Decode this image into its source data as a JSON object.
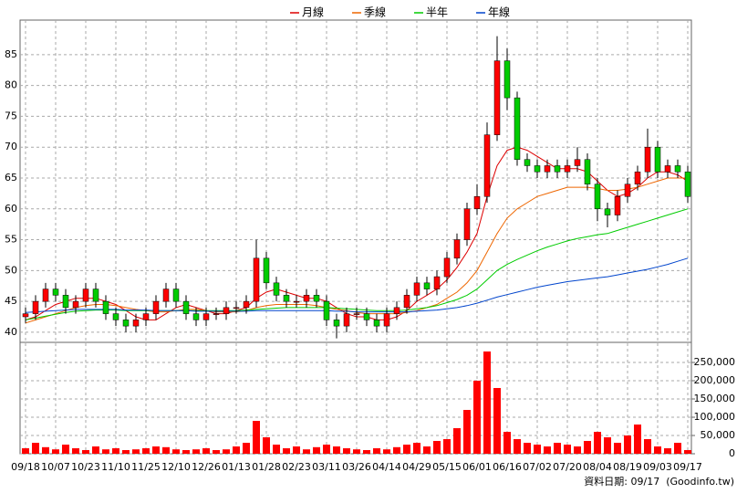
{
  "chart_data": [
    {
      "type": "candlestick",
      "up_color": "#ff0000",
      "down_color": "#00cc00",
      "open": [
        42.5,
        43,
        45,
        47,
        46,
        44,
        45,
        47,
        45,
        43,
        42,
        41,
        42,
        43,
        45,
        47,
        45,
        43,
        42,
        43,
        43,
        44,
        44,
        45,
        52,
        48,
        46,
        45,
        45,
        46,
        45,
        42,
        41,
        43,
        43,
        42,
        41,
        43,
        44,
        46,
        48,
        47,
        49,
        52,
        55,
        60,
        62,
        72,
        84,
        78,
        68,
        67,
        66,
        67,
        66,
        67,
        68,
        64,
        60,
        59,
        62,
        64,
        66,
        70,
        66,
        67,
        66
      ],
      "high": [
        44,
        46,
        48,
        48,
        47,
        46,
        48,
        48,
        46,
        44,
        43,
        43,
        44,
        46,
        48,
        48,
        46,
        44,
        44,
        44,
        45,
        45,
        46,
        55,
        53,
        49,
        47,
        46,
        47,
        47,
        46,
        43,
        44,
        44,
        44,
        43,
        44,
        45,
        47,
        49,
        49,
        50,
        53,
        56,
        61,
        64,
        74,
        88,
        86,
        79,
        69,
        68,
        68,
        68,
        68,
        70,
        69,
        65,
        61,
        63,
        65,
        67,
        73,
        71,
        68,
        68,
        67
      ],
      "low": [
        41.5,
        42,
        44,
        45,
        43,
        43,
        44,
        44,
        42,
        41,
        40,
        40,
        41,
        42,
        44,
        44,
        42,
        41,
        41,
        42,
        42,
        43,
        43,
        44,
        47,
        45,
        44,
        44,
        44,
        44,
        41,
        39,
        40,
        42,
        41,
        40,
        40,
        42,
        43,
        45,
        46,
        46,
        48,
        51,
        54,
        59,
        61,
        71,
        76,
        67,
        66,
        65,
        65,
        65,
        65,
        66,
        63,
        58,
        57,
        58,
        61,
        63,
        65,
        65,
        65,
        65,
        61
      ],
      "close": [
        43,
        45,
        47,
        46,
        44,
        45,
        47,
        45,
        43,
        42,
        41,
        42,
        43,
        45,
        47,
        45,
        43,
        42,
        43,
        43,
        44,
        44,
        45,
        52,
        48,
        46,
        45,
        45,
        46,
        45,
        42,
        41,
        43,
        43,
        42,
        41,
        43,
        44,
        46,
        48,
        47,
        49,
        52,
        55,
        60,
        62,
        72,
        84,
        78,
        68,
        67,
        66,
        67,
        66,
        67,
        68,
        64,
        60,
        59,
        62,
        64,
        66,
        70,
        66,
        67,
        66,
        62
      ],
      "series": [
        {
          "name": "月線",
          "color": "#dd0000",
          "values": [
            42,
            42.5,
            43.5,
            44.5,
            45,
            45.5,
            45.5,
            45.5,
            45,
            44.5,
            43.5,
            42.5,
            42,
            42,
            43,
            44,
            44.5,
            44,
            43.5,
            43,
            43,
            43.5,
            44,
            45.5,
            46.5,
            47,
            46.5,
            46,
            45.5,
            45.5,
            45,
            44,
            43,
            42.5,
            42.5,
            42,
            42,
            42.5,
            43.5,
            45,
            46,
            47,
            48.5,
            50.5,
            53,
            56,
            62,
            67,
            69.5,
            70,
            69.5,
            68.5,
            67.5,
            66.5,
            66.5,
            66.5,
            66,
            64.5,
            63,
            62,
            62.5,
            63.5,
            65,
            66,
            66,
            65.5,
            64.5
          ]
        },
        {
          "name": "季線",
          "color": "#ee6600",
          "values": [
            41.5,
            42,
            42.5,
            43,
            43.5,
            44,
            44.3,
            44.5,
            44.5,
            44.3,
            44,
            43.7,
            43.5,
            43.3,
            43.3,
            43.5,
            43.7,
            43.7,
            43.5,
            43.3,
            43.3,
            43.3,
            43.5,
            44,
            44.3,
            44.5,
            44.5,
            44.5,
            44.5,
            44.3,
            44,
            43.7,
            43.5,
            43.2,
            43,
            43,
            43,
            43,
            43.2,
            43.5,
            44,
            44.5,
            45.5,
            46.5,
            48,
            50,
            53,
            56,
            58.5,
            60,
            61,
            62,
            62.5,
            63,
            63.5,
            63.5,
            63.5,
            63.3,
            63,
            63,
            63.2,
            63.5,
            64,
            64.5,
            65,
            65,
            65
          ]
        },
        {
          "name": "半年",
          "color": "#00cc00",
          "values": [
            42,
            42.3,
            42.6,
            42.9,
            43.2,
            43.4,
            43.5,
            43.6,
            43.6,
            43.6,
            43.5,
            43.5,
            43.5,
            43.5,
            43.5,
            43.5,
            43.5,
            43.5,
            43.5,
            43.5,
            43.5,
            43.5,
            43.6,
            43.7,
            43.8,
            43.9,
            44,
            44,
            44,
            44,
            44,
            43.9,
            43.8,
            43.7,
            43.6,
            43.5,
            43.5,
            43.5,
            43.6,
            43.8,
            44,
            44.3,
            44.8,
            45.3,
            46,
            47,
            48.5,
            50,
            51,
            51.8,
            52.5,
            53.2,
            53.8,
            54.3,
            54.8,
            55.2,
            55.5,
            55.8,
            56,
            56.5,
            57,
            57.5,
            58,
            58.5,
            59,
            59.5,
            60
          ]
        },
        {
          "name": "年線",
          "color": "#0044cc",
          "values": [
            43.2,
            43.3,
            43.4,
            43.5,
            43.6,
            43.7,
            43.7,
            43.7,
            43.7,
            43.7,
            43.6,
            43.6,
            43.6,
            43.5,
            43.5,
            43.5,
            43.5,
            43.4,
            43.4,
            43.4,
            43.4,
            43.4,
            43.4,
            43.5,
            43.5,
            43.5,
            43.5,
            43.5,
            43.5,
            43.5,
            43.5,
            43.4,
            43.4,
            43.3,
            43.3,
            43.3,
            43.3,
            43.3,
            43.3,
            43.4,
            43.5,
            43.6,
            43.8,
            44,
            44.3,
            44.7,
            45.2,
            45.7,
            46.1,
            46.5,
            46.9,
            47.3,
            47.6,
            47.9,
            48.2,
            48.4,
            48.6,
            48.8,
            49,
            49.3,
            49.6,
            49.9,
            50.2,
            50.6,
            51,
            51.5,
            52
          ]
        }
      ],
      "ylim": [
        38.8,
        90.6
      ],
      "yticks": [
        40,
        45,
        50,
        55,
        60,
        65,
        70,
        75,
        80,
        85
      ],
      "grid": true
    },
    {
      "type": "bar",
      "color": "#ff0000",
      "categories": [
        "09/18",
        null,
        null,
        "10/07",
        null,
        null,
        "10/23",
        null,
        null,
        "11/10",
        null,
        null,
        "11/25",
        null,
        null,
        "12/10",
        null,
        null,
        "12/26",
        null,
        null,
        "01/13",
        null,
        null,
        "01/28",
        null,
        null,
        "02/23",
        null,
        null,
        "03/11",
        null,
        null,
        "03/26",
        null,
        null,
        "04/14",
        null,
        null,
        "04/29",
        null,
        null,
        "05/15",
        null,
        null,
        "06/01",
        null,
        null,
        "06/16",
        null,
        null,
        "07/02",
        null,
        null,
        "07/20",
        null,
        null,
        "08/04",
        null,
        null,
        "08/19",
        null,
        null,
        "09/03",
        null,
        null,
        "09/17"
      ],
      "values": [
        15000,
        30000,
        18000,
        12000,
        25000,
        15000,
        10000,
        20000,
        12000,
        15000,
        10000,
        12000,
        15000,
        20000,
        18000,
        12000,
        10000,
        12000,
        15000,
        10000,
        12000,
        20000,
        30000,
        90000,
        45000,
        25000,
        15000,
        20000,
        12000,
        18000,
        25000,
        20000,
        15000,
        12000,
        10000,
        15000,
        12000,
        18000,
        25000,
        30000,
        20000,
        35000,
        40000,
        70000,
        120000,
        200000,
        280000,
        180000,
        60000,
        40000,
        30000,
        25000,
        20000,
        30000,
        25000,
        20000,
        35000,
        60000,
        45000,
        30000,
        50000,
        80000,
        40000,
        20000,
        15000,
        30000,
        10000
      ],
      "ylim": [
        0,
        297500
      ],
      "yticks": [
        0,
        {
          "value": 50000,
          "label": "50,000"
        },
        {
          "value": 100000,
          "label": "100,000"
        },
        {
          "value": 150000,
          "label": "150,000"
        },
        {
          "value": 200000,
          "label": "200,000"
        },
        {
          "value": 250000,
          "label": "250,000"
        }
      ],
      "grid": true
    }
  ],
  "footer": "資料日期: 09/17  (Goodinfo.tw)"
}
